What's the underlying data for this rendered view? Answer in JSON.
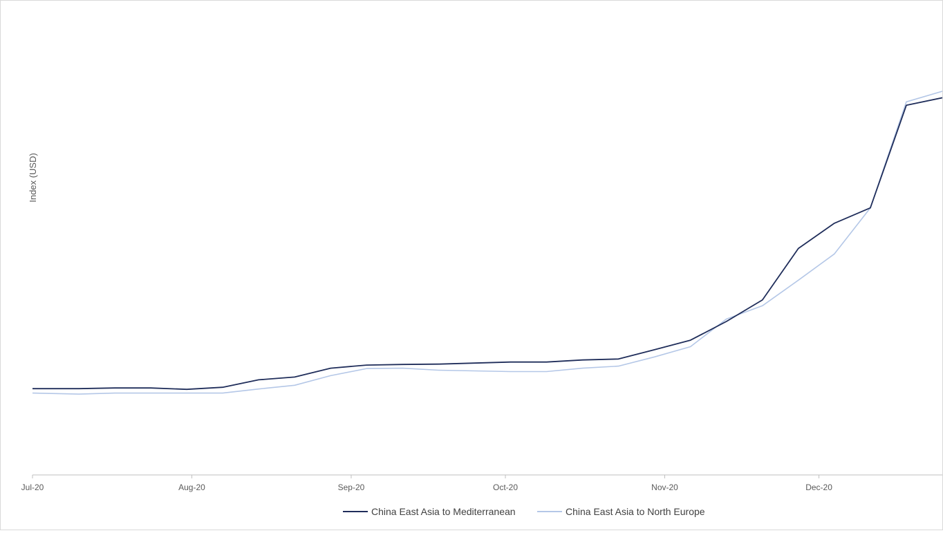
{
  "chart_data": {
    "type": "line",
    "title": "",
    "xlabel": "",
    "ylabel": "Index (USD)",
    "x_tick_labels": [
      "Jul-20",
      "Aug-20",
      "Sep-20",
      "Oct-20",
      "Nov-20",
      "Dec-20"
    ],
    "x": [
      "2020-07-01",
      "2020-07-10",
      "2020-07-17",
      "2020-07-24",
      "2020-07-31",
      "2020-08-07",
      "2020-08-14",
      "2020-08-21",
      "2020-08-28",
      "2020-09-04",
      "2020-09-11",
      "2020-09-18",
      "2020-09-25",
      "2020-10-02",
      "2020-10-09",
      "2020-10-16",
      "2020-10-23",
      "2020-10-30",
      "2020-11-06",
      "2020-11-13",
      "2020-11-20",
      "2020-11-27",
      "2020-12-04",
      "2020-12-11",
      "2020-12-18",
      "2020-12-25"
    ],
    "series": [
      {
        "name": "China East Asia to Mediterranean",
        "color": "#1f2d5a",
        "values": [
          1003,
          1003,
          1005,
          1005,
          1001,
          1007,
          1029,
          1037,
          1063,
          1072,
          1074,
          1075,
          1078,
          1081,
          1081,
          1087,
          1090,
          1117,
          1145,
          1200,
          1263,
          1414,
          1488,
          1533,
          1834,
          1856
        ]
      },
      {
        "name": "China East Asia to North Europe",
        "color": "#b4c7e7",
        "values": [
          990,
          987,
          990,
          990,
          990,
          990,
          1002,
          1013,
          1041,
          1062,
          1063,
          1057,
          1055,
          1053,
          1053,
          1063,
          1069,
          1096,
          1126,
          1207,
          1246,
          1321,
          1398,
          1533,
          1844,
          1875
        ]
      }
    ],
    "ylim": [
      750,
      2100
    ],
    "grid": false,
    "legend_position": "bottom"
  }
}
